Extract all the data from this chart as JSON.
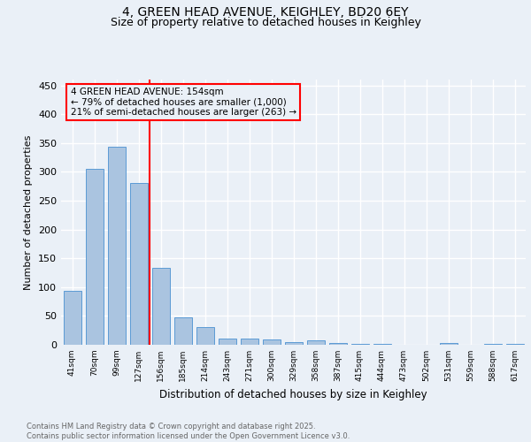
{
  "title1": "4, GREEN HEAD AVENUE, KEIGHLEY, BD20 6EY",
  "title2": "Size of property relative to detached houses in Keighley",
  "xlabel": "Distribution of detached houses by size in Keighley",
  "ylabel": "Number of detached properties",
  "categories": [
    "41sqm",
    "70sqm",
    "99sqm",
    "127sqm",
    "156sqm",
    "185sqm",
    "214sqm",
    "243sqm",
    "271sqm",
    "300sqm",
    "329sqm",
    "358sqm",
    "387sqm",
    "415sqm",
    "444sqm",
    "473sqm",
    "502sqm",
    "531sqm",
    "559sqm",
    "588sqm",
    "617sqm"
  ],
  "values": [
    93,
    305,
    344,
    281,
    134,
    47,
    30,
    10,
    11,
    9,
    5,
    7,
    3,
    1,
    1,
    0,
    0,
    3,
    0,
    1,
    2
  ],
  "bar_color": "#aac4e0",
  "bar_edge_color": "#5b9bd5",
  "annotation_text_line1": "4 GREEN HEAD AVENUE: 154sqm",
  "annotation_text_line2": "← 79% of detached houses are smaller (1,000)",
  "annotation_text_line3": "21% of semi-detached houses are larger (263) →",
  "annotation_box_color": "red",
  "vline_color": "red",
  "vline_index": 4,
  "ylim": [
    0,
    460
  ],
  "yticks": [
    0,
    50,
    100,
    150,
    200,
    250,
    300,
    350,
    400,
    450
  ],
  "footer_line1": "Contains HM Land Registry data © Crown copyright and database right 2025.",
  "footer_line2": "Contains public sector information licensed under the Open Government Licence v3.0.",
  "bg_color": "#eaf0f7",
  "grid_color": "#ffffff",
  "title_fontsize": 10,
  "subtitle_fontsize": 9,
  "bar_width": 0.8
}
